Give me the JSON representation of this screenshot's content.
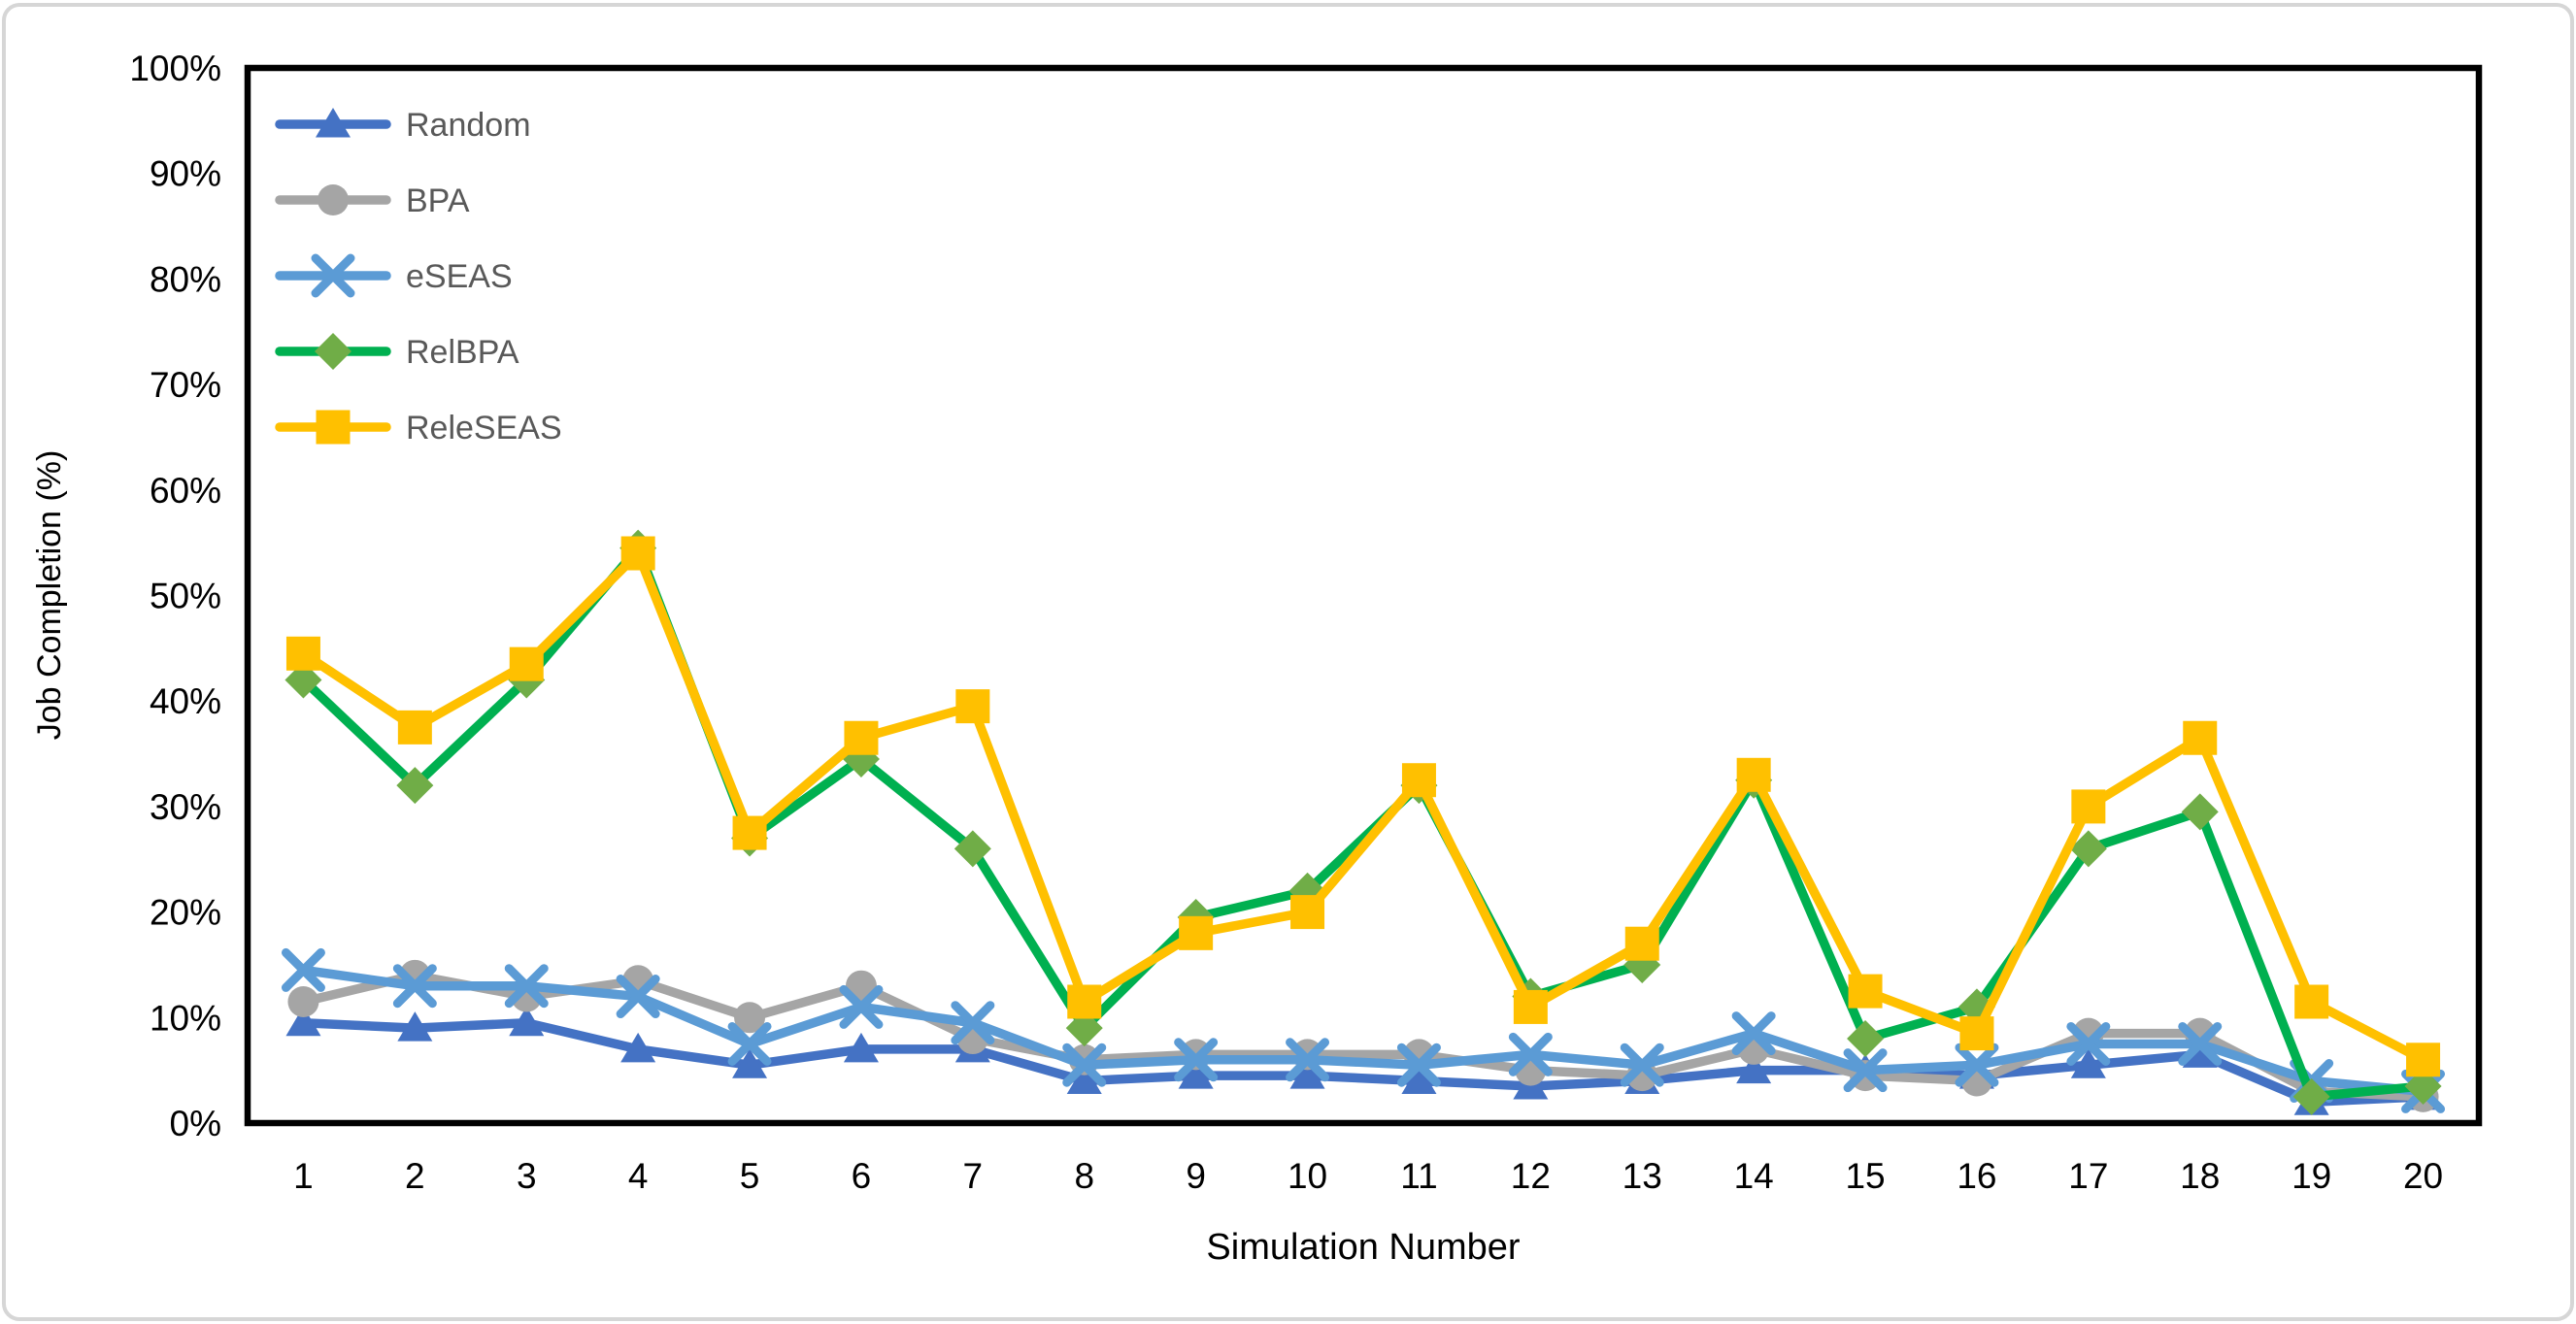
{
  "figure": {
    "background": "#ffffff",
    "outer_border_color": "#d6d6d6",
    "plot_border_color": "#000000",
    "axis_text_color": "#000000",
    "legend_text_color": "#595959"
  },
  "chart_data": {
    "type": "line",
    "title": "",
    "xlabel": "Simulation Number",
    "ylabel": "Job Completion (%)",
    "x": [
      1,
      2,
      3,
      4,
      5,
      6,
      7,
      8,
      9,
      10,
      11,
      12,
      13,
      14,
      15,
      16,
      17,
      18,
      19,
      20
    ],
    "ylim": [
      0,
      100
    ],
    "y_tick_step": 10,
    "y_tick_labels": [
      "0%",
      "10%",
      "20%",
      "30%",
      "40%",
      "50%",
      "60%",
      "70%",
      "80%",
      "90%",
      "100%"
    ],
    "grid": false,
    "legend_position": "top-left-inside",
    "legend_order": [
      "Random",
      "BPA",
      "eSEAS",
      "RelBPA",
      "ReleSEAS"
    ],
    "series": [
      {
        "name": "Random",
        "color": "#4472C4",
        "marker": "triangle",
        "marker_color": "#4472C4",
        "values": [
          9.5,
          9,
          9.5,
          7,
          5.5,
          7,
          7,
          4,
          4.5,
          4.5,
          4,
          3.5,
          4,
          5,
          5,
          4.5,
          5.5,
          6.5,
          2,
          2.5
        ]
      },
      {
        "name": "BPA",
        "color": "#A5A5A5",
        "marker": "circle",
        "marker_color": "#A5A5A5",
        "values": [
          11.5,
          14,
          12,
          13.5,
          10,
          13,
          8,
          6,
          6.5,
          6.5,
          6.5,
          5,
          4.5,
          7,
          4.5,
          4,
          8.5,
          8.5,
          3,
          2.5
        ]
      },
      {
        "name": "eSEAS",
        "color": "#5B9BD5",
        "marker": "x",
        "marker_color": "#5B9BD5",
        "values": [
          14.5,
          13,
          13,
          12,
          7.5,
          11,
          9.5,
          5.5,
          6,
          6,
          5.5,
          6.5,
          5.5,
          8.5,
          5,
          5.5,
          7.5,
          7.5,
          4,
          3
        ]
      },
      {
        "name": "RelBPA",
        "color": "#00B050",
        "marker": "diamond",
        "marker_color": "#70AD47",
        "values": [
          42,
          32,
          42,
          54.5,
          27,
          34.5,
          26,
          9,
          19.5,
          22,
          32,
          12,
          15,
          32.5,
          8,
          11,
          26,
          29.5,
          2.5,
          3.5
        ]
      },
      {
        "name": "ReleSEAS",
        "color": "#FFC000",
        "marker": "square",
        "marker_color": "#FFC000",
        "values": [
          44.5,
          37.5,
          43.5,
          54,
          27.5,
          36.5,
          39.5,
          11.5,
          18,
          20,
          32.5,
          11,
          17,
          33,
          12.5,
          8.5,
          30,
          36.5,
          11.5,
          6
        ]
      }
    ]
  }
}
